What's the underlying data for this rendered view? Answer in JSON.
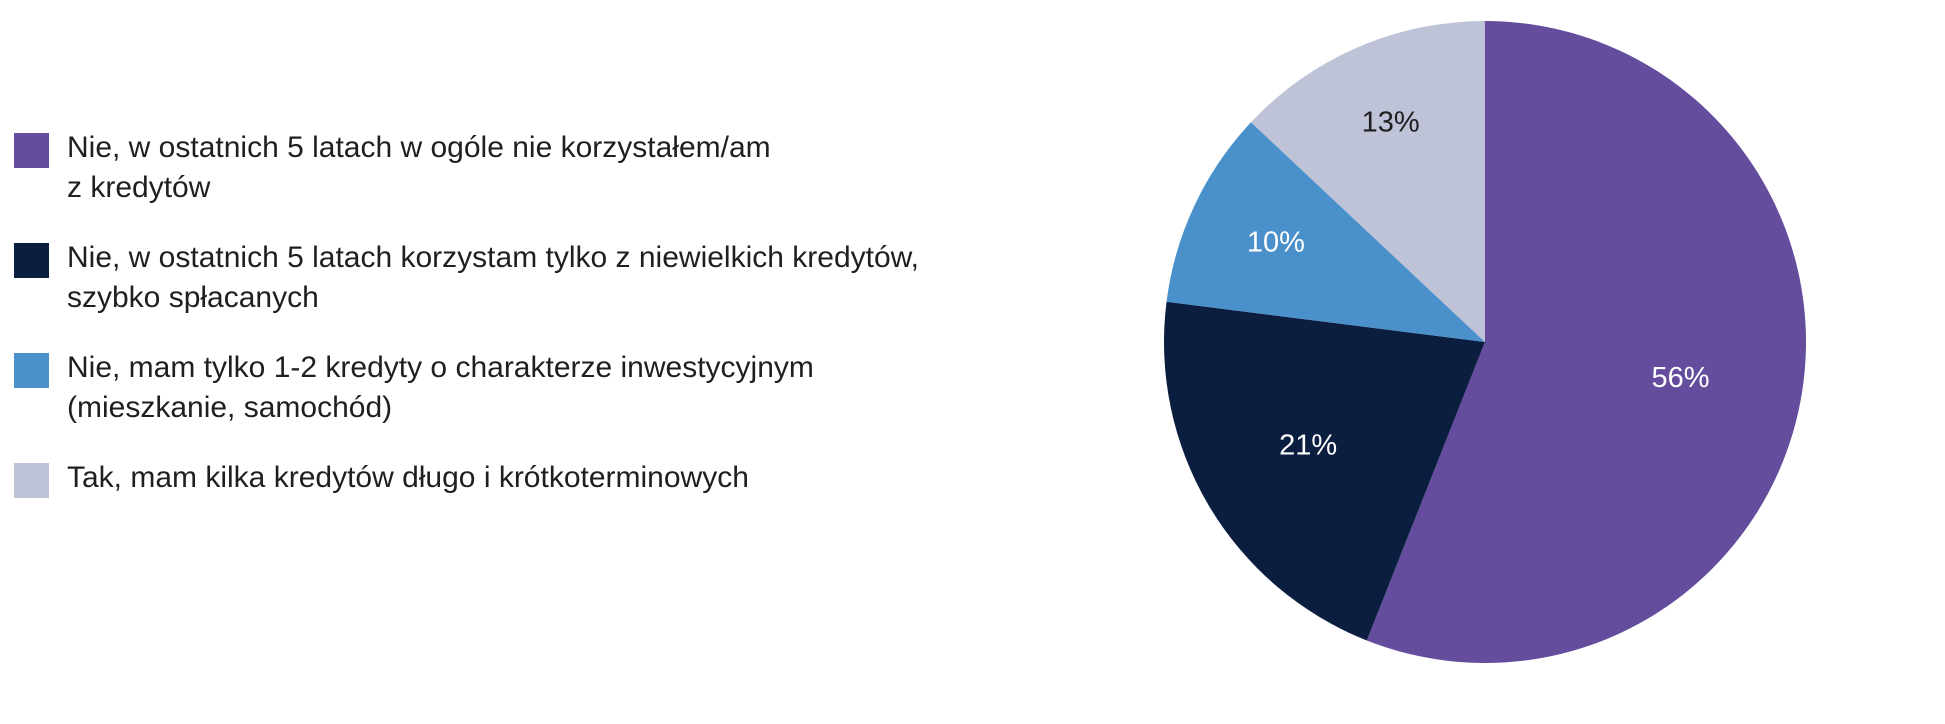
{
  "chart_data": {
    "type": "pie",
    "categories": [
      "Nie, w ostatnich 5 latach w ogóle nie korzystałem/am\nz kredytów",
      "Nie, w ostatnich 5 latach korzystam tylko z niewielkich kredytów,\nszybko spłacanych",
      "Nie, mam tylko 1-2 kredyty o charakterze inwestycyjnym\n(mieszkanie, samochód)",
      "Tak, mam kilka kredytów długo i krótkoterminowych"
    ],
    "values": [
      56,
      21,
      10,
      13
    ],
    "labels": [
      "56%",
      "21%",
      "10%",
      "13%"
    ],
    "colors": [
      "#634d9c",
      "#0b1e40",
      "#4a90cb",
      "#bec3d8"
    ],
    "label_colors": [
      "#ffffff",
      "#ffffff",
      "#ffffff",
      "#1f1f1f"
    ],
    "start": "12 o'clock",
    "direction": "clockwise",
    "legend_position": "left"
  }
}
